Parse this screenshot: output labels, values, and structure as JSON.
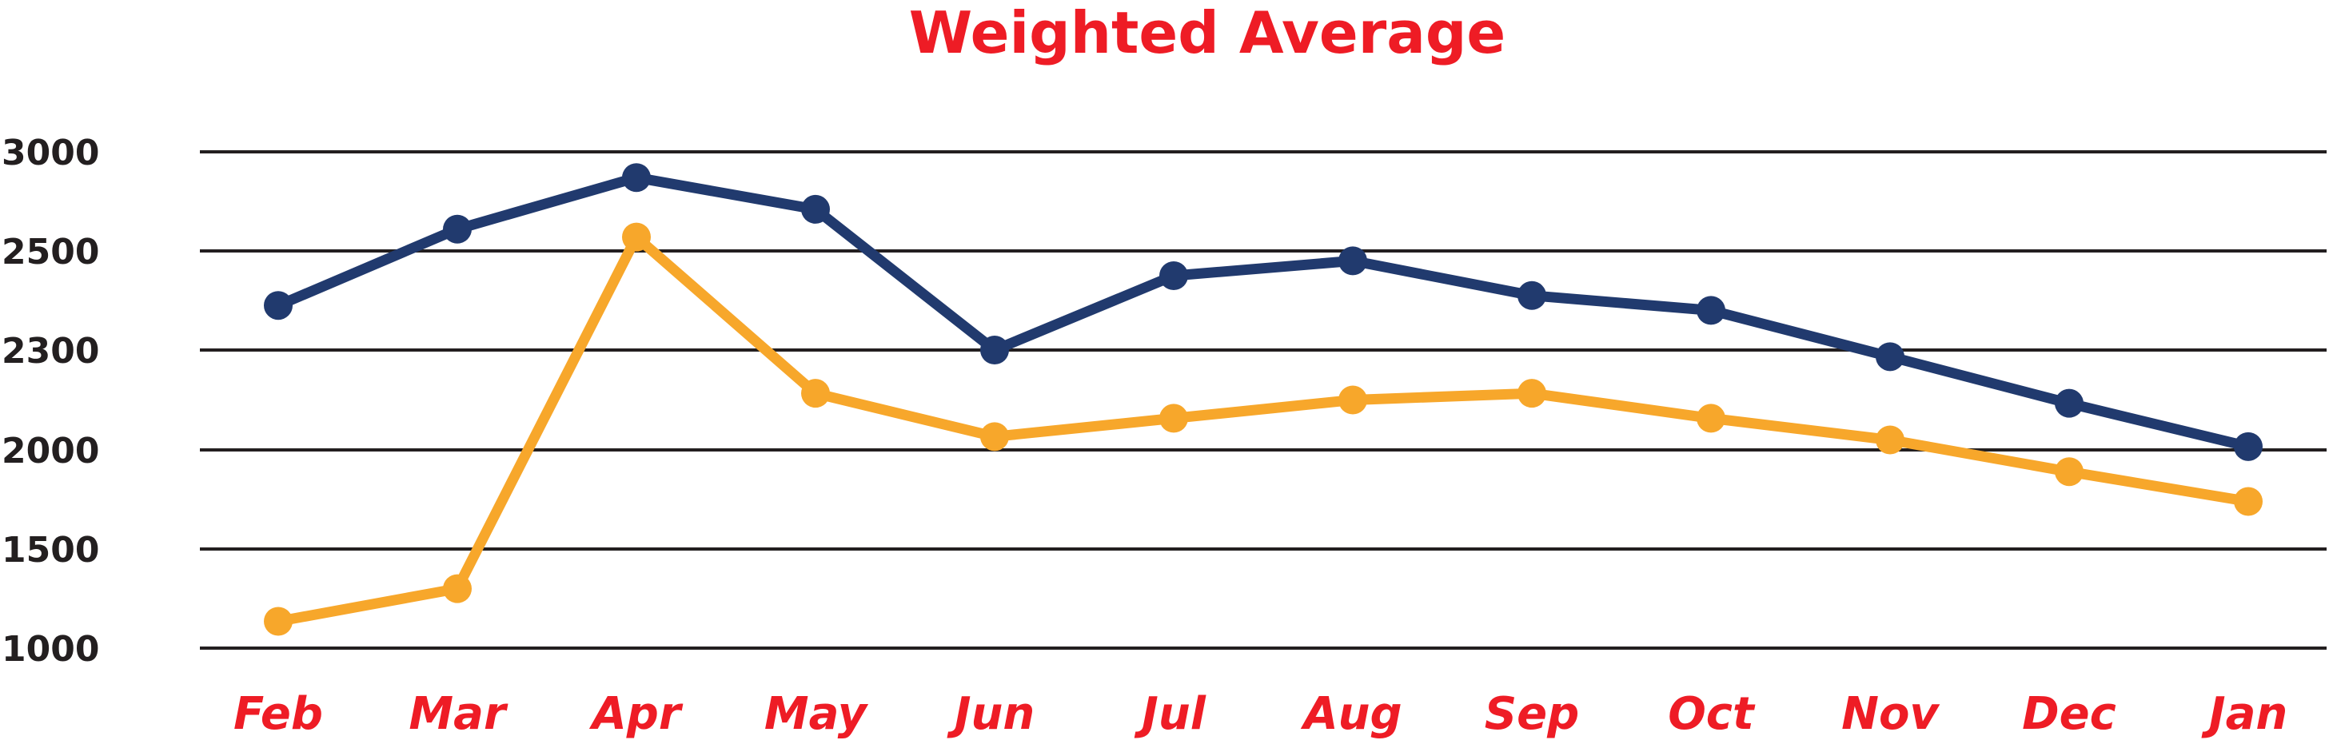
{
  "chart_data": {
    "type": "line",
    "title": "Weighted Average",
    "categories": [
      "Feb",
      "Mar",
      "Apr",
      "May",
      "Jun",
      "Jul",
      "Aug",
      "Sep",
      "Oct",
      "Nov",
      "Dec",
      "Jan"
    ],
    "y_tick_labels": [
      "3000",
      "2500",
      "2300",
      "2000",
      "1500",
      "1000"
    ],
    "grid": true,
    "series": [
      {
        "color": "#213a6e",
        "values": [
          2390,
          2610,
          2870,
          2710,
          2300,
          2450,
          2480,
          2410,
          2380,
          2280,
          2140,
          2010
        ]
      },
      {
        "color": "#f7a72b",
        "values": [
          1135,
          1300,
          2570,
          2170,
          2040,
          2095,
          2150,
          2170,
          2095,
          2030,
          1890,
          1740
        ]
      }
    ]
  }
}
